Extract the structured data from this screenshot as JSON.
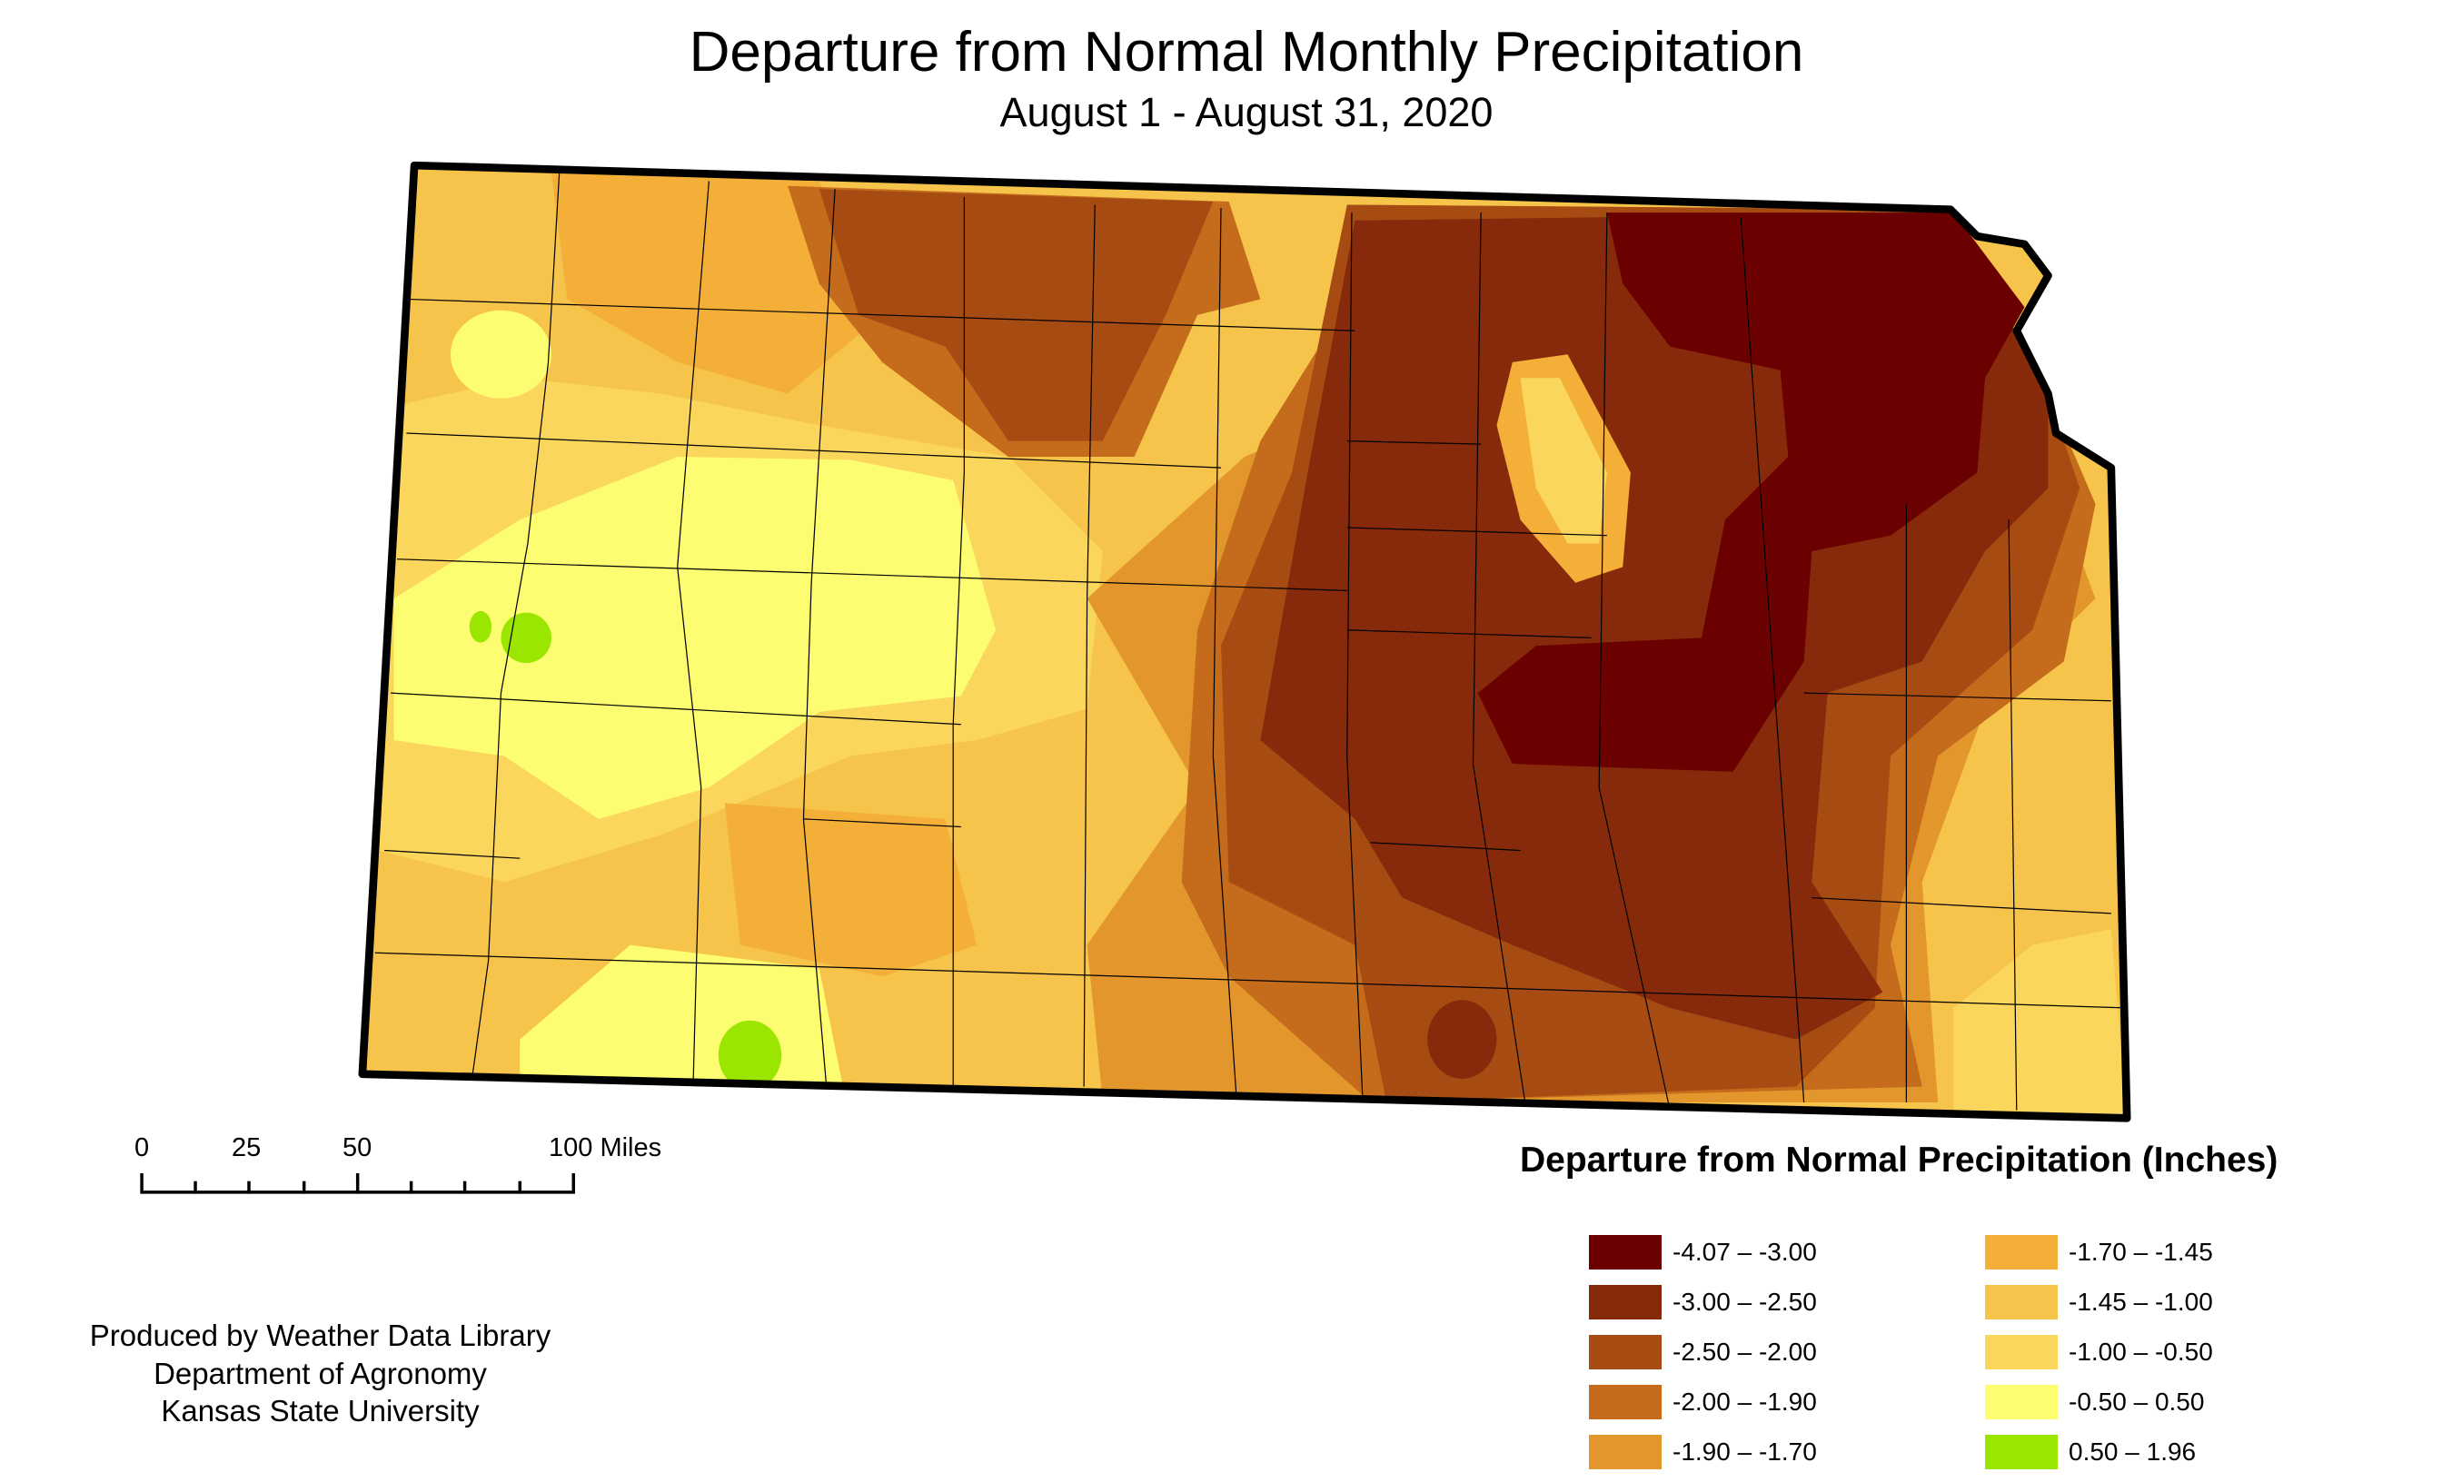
{
  "title": "Departure from Normal Monthly Precipitation",
  "subtitle": "August 1 - August 31, 2020",
  "legend": {
    "title": "Departure from Normal Precipitation (Inches)",
    "items": [
      {
        "label": "-4.07 – -3.00",
        "color": "#6b0000"
      },
      {
        "label": "-3.00 – -2.50",
        "color": "#872a0b"
      },
      {
        "label": "-2.50 – -2.00",
        "color": "#a64c13"
      },
      {
        "label": "-2.00 – -1.90",
        "color": "#c46c1c"
      },
      {
        "label": "-1.90 – -1.70",
        "color": "#e3962c"
      },
      {
        "label": "-1.70 – -1.45",
        "color": "#f4af39"
      },
      {
        "label": "-1.45 – -1.00",
        "color": "#f6c44b"
      },
      {
        "label": "-1.00 – -0.50",
        "color": "#fbd65c"
      },
      {
        "label": "-0.50 – 0.50",
        "color": "#fdfd72"
      },
      {
        "label": "0.50 – 1.96",
        "color": "#9ae600"
      }
    ]
  },
  "scale_bar": {
    "labels": [
      "0",
      "25",
      "50",
      "100 Miles"
    ]
  },
  "credits": [
    "Produced by Weather Data Library",
    "Department of Agronomy",
    "Kansas State University"
  ]
}
